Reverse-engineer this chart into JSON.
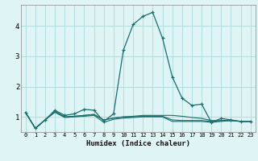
{
  "xlabel": "Humidex (Indice chaleur)",
  "bg_color": "#dff4f4",
  "grid_color": "#add8d8",
  "line_color": "#1a6e6e",
  "xlim": [
    -0.5,
    23.5
  ],
  "ylim": [
    0.5,
    4.7
  ],
  "yticks": [
    1,
    2,
    3,
    4
  ],
  "xticks": [
    0,
    1,
    2,
    3,
    4,
    5,
    6,
    7,
    8,
    9,
    10,
    11,
    12,
    13,
    14,
    15,
    16,
    17,
    18,
    19,
    20,
    21,
    22,
    23
  ],
  "series_main": [
    1.15,
    0.62,
    0.9,
    1.22,
    1.05,
    1.1,
    1.25,
    1.22,
    0.85,
    1.1,
    3.2,
    4.05,
    4.32,
    4.45,
    3.6,
    2.32,
    1.62,
    1.38,
    1.42,
    0.82,
    0.95,
    0.9,
    0.85,
    0.85
  ],
  "series_flat1": [
    1.15,
    0.62,
    0.9,
    1.18,
    1.0,
    1.02,
    1.05,
    1.08,
    0.9,
    0.96,
    1.0,
    1.02,
    1.05,
    1.05,
    1.05,
    1.05,
    1.02,
    0.98,
    0.95,
    0.88,
    0.88,
    0.88,
    0.85,
    0.85
  ],
  "series_flat2": [
    1.15,
    0.62,
    0.9,
    1.18,
    1.0,
    1.02,
    1.05,
    1.08,
    0.9,
    0.96,
    1.0,
    1.0,
    1.02,
    1.02,
    1.02,
    0.9,
    0.88,
    0.88,
    0.88,
    0.85,
    0.88,
    0.88,
    0.85,
    0.85
  ],
  "series_flat3": [
    1.15,
    0.62,
    0.9,
    1.15,
    0.98,
    1.0,
    1.02,
    1.05,
    0.82,
    0.92,
    0.96,
    0.98,
    1.0,
    1.0,
    1.0,
    0.85,
    0.85,
    0.85,
    0.85,
    0.82,
    0.85,
    0.88,
    0.85,
    0.85
  ]
}
